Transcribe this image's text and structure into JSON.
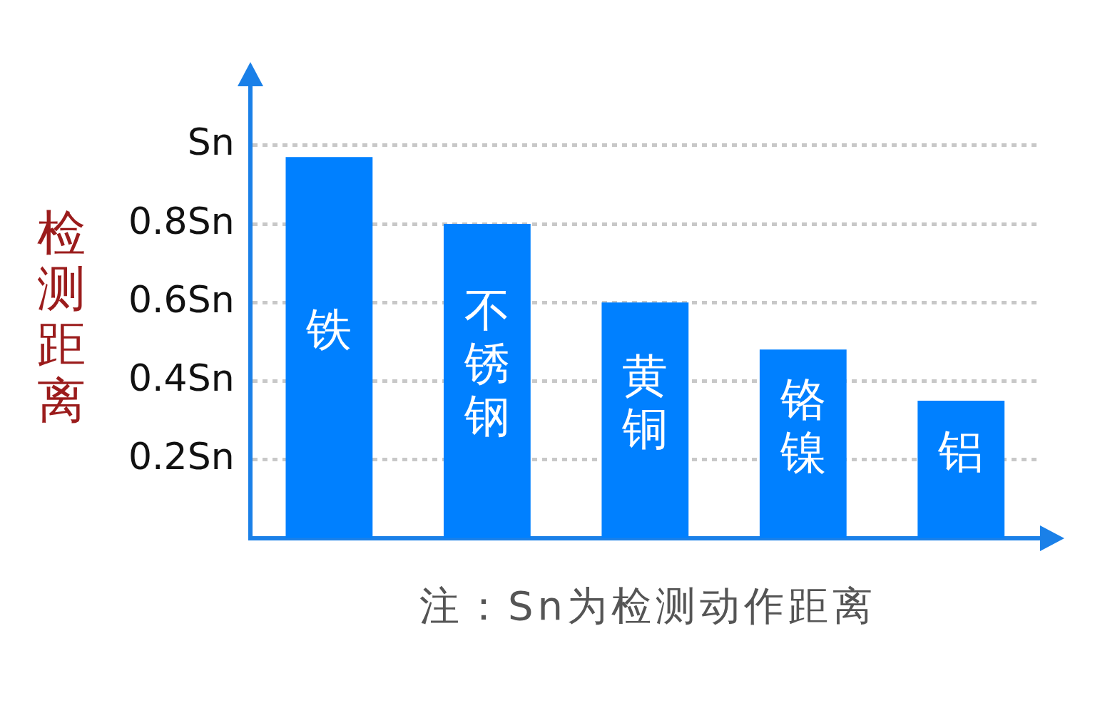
{
  "chart_data": {
    "type": "bar",
    "categories": [
      "铁",
      "不锈钢",
      "黄铜",
      "铬镍",
      "铝"
    ],
    "values": [
      0.97,
      0.8,
      0.6,
      0.48,
      0.35
    ],
    "color": "#0080ff",
    "ylabel": "检测距离",
    "annotations": [
      "注：Sn为检测动作距离"
    ],
    "ylim": [
      0,
      1.15
    ],
    "yticks": [
      {
        "value": 0.2,
        "label": "0.2Sn"
      },
      {
        "value": 0.4,
        "label": "0.4Sn"
      },
      {
        "value": 0.6,
        "label": "0.6Sn"
      },
      {
        "value": 0.8,
        "label": "0.8Sn"
      },
      {
        "value": 1,
        "label": "Sn"
      }
    ],
    "grid": "y",
    "tick_labels": "y",
    "legend": false
  }
}
